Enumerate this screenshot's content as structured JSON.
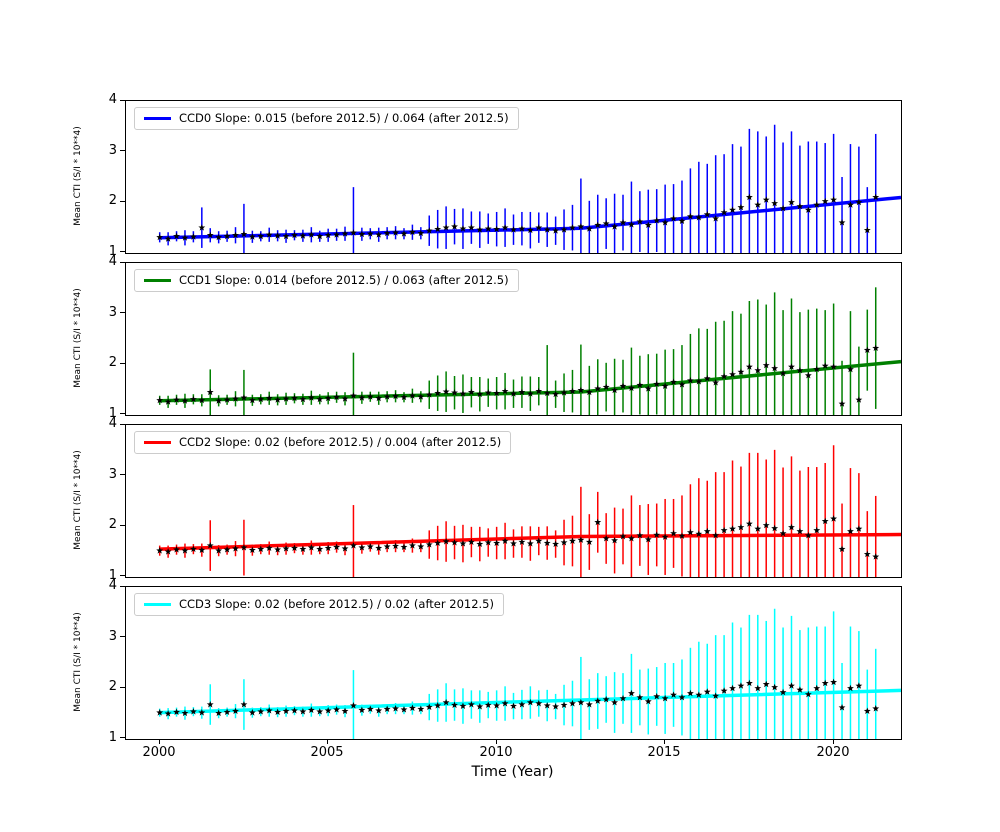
{
  "chart_data": {
    "type": "scatter",
    "title": "",
    "xlabel": "Time (Year)",
    "ylabel": "Mean CTI (S/I * 10**4)",
    "xlim": [
      1999,
      2022
    ],
    "ylim": [
      1,
      4
    ],
    "x_ticks": [
      2000,
      2005,
      2010,
      2015,
      2020
    ],
    "y_ticks": [
      4,
      3,
      2,
      1
    ],
    "break_x": 2012.5,
    "marker": {
      "shape": "star",
      "color": "#000000"
    },
    "x": [
      2000.0,
      2000.25,
      2000.5,
      2000.75,
      2001.0,
      2001.25,
      2001.5,
      2001.75,
      2002.0,
      2002.25,
      2002.5,
      2002.75,
      2003.0,
      2003.25,
      2003.5,
      2003.75,
      2004.0,
      2004.25,
      2004.5,
      2004.75,
      2005.0,
      2005.25,
      2005.5,
      2005.75,
      2006.0,
      2006.25,
      2006.5,
      2006.75,
      2007.0,
      2007.25,
      2007.5,
      2007.75,
      2008.0,
      2008.25,
      2008.5,
      2008.75,
      2009.0,
      2009.25,
      2009.5,
      2009.75,
      2010.0,
      2010.25,
      2010.5,
      2010.75,
      2011.0,
      2011.25,
      2011.5,
      2011.75,
      2012.0,
      2012.25,
      2012.5,
      2012.75,
      2013.0,
      2013.25,
      2013.5,
      2013.75,
      2014.0,
      2014.25,
      2014.5,
      2014.75,
      2015.0,
      2015.25,
      2015.5,
      2015.75,
      2016.0,
      2016.25,
      2016.5,
      2016.75,
      2017.0,
      2017.25,
      2017.5,
      2017.75,
      2018.0,
      2018.25,
      2018.5,
      2018.75,
      2019.0,
      2019.25,
      2019.5,
      2019.75,
      2020.0,
      2020.25,
      2020.5,
      2020.75,
      2021.0,
      2021.25
    ],
    "series": [
      {
        "name": "CCD0",
        "color": "#0000ff",
        "legend": "CCD0 Slope: 0.015 (before 2012.5) / 0.064 (after 2012.5)",
        "slope_before": 0.015,
        "slope_after": 0.064,
        "value_at_2000": 1.3,
        "y": [
          1.31,
          1.28,
          1.33,
          1.3,
          1.32,
          1.5,
          1.35,
          1.31,
          1.33,
          1.35,
          1.37,
          1.32,
          1.33,
          1.36,
          1.34,
          1.33,
          1.35,
          1.34,
          1.36,
          1.33,
          1.35,
          1.36,
          1.38,
          1.4,
          1.37,
          1.38,
          1.36,
          1.39,
          1.4,
          1.38,
          1.41,
          1.39,
          1.44,
          1.47,
          1.5,
          1.52,
          1.48,
          1.5,
          1.46,
          1.48,
          1.47,
          1.5,
          1.46,
          1.48,
          1.45,
          1.5,
          1.46,
          1.44,
          1.46,
          1.5,
          1.52,
          1.48,
          1.55,
          1.58,
          1.52,
          1.6,
          1.56,
          1.62,
          1.55,
          1.64,
          1.6,
          1.68,
          1.63,
          1.72,
          1.7,
          1.76,
          1.68,
          1.8,
          1.85,
          1.9,
          2.1,
          1.95,
          2.05,
          1.98,
          1.88,
          2.0,
          1.92,
          1.85,
          1.95,
          2.02,
          2.05,
          1.6,
          1.95,
          2.0,
          1.45,
          2.1
        ],
        "yerr": [
          0.1,
          0.13,
          0.1,
          0.15,
          0.11,
          0.4,
          0.14,
          0.12,
          0.11,
          0.16,
          0.6,
          0.12,
          0.1,
          0.14,
          0.11,
          0.13,
          0.1,
          0.12,
          0.15,
          0.11,
          0.13,
          0.12,
          0.14,
          0.9,
          0.13,
          0.11,
          0.14,
          0.12,
          0.13,
          0.11,
          0.15,
          0.12,
          0.3,
          0.38,
          0.42,
          0.35,
          0.4,
          0.32,
          0.36,
          0.3,
          0.34,
          0.38,
          0.3,
          0.33,
          0.36,
          0.3,
          0.34,
          0.28,
          0.4,
          0.45,
          0.95,
          0.55,
          0.6,
          0.5,
          0.65,
          0.55,
          0.85,
          0.6,
          0.7,
          0.62,
          0.75,
          0.68,
          0.8,
          0.95,
          1.1,
          1.0,
          1.25,
          1.15,
          1.3,
          1.2,
          1.35,
          1.45,
          1.25,
          1.55,
          1.3,
          1.4,
          1.2,
          1.35,
          1.25,
          1.15,
          1.3,
          0.9,
          1.2,
          1.1,
          0.85,
          1.25
        ]
      },
      {
        "name": "CCD1",
        "color": "#008000",
        "legend": "CCD1 Slope: 0.014 (before 2012.5) / 0.063 (after 2012.5)",
        "slope_before": 0.014,
        "slope_after": 0.063,
        "value_at_2000": 1.28,
        "y": [
          1.29,
          1.26,
          1.3,
          1.28,
          1.31,
          1.29,
          1.45,
          1.28,
          1.3,
          1.32,
          1.34,
          1.29,
          1.31,
          1.33,
          1.3,
          1.32,
          1.33,
          1.31,
          1.34,
          1.31,
          1.33,
          1.35,
          1.32,
          1.38,
          1.34,
          1.36,
          1.33,
          1.36,
          1.37,
          1.35,
          1.38,
          1.36,
          1.4,
          1.43,
          1.46,
          1.44,
          1.42,
          1.45,
          1.41,
          1.44,
          1.43,
          1.47,
          1.42,
          1.45,
          1.42,
          1.47,
          1.43,
          1.41,
          1.44,
          1.47,
          1.49,
          1.45,
          1.52,
          1.55,
          1.49,
          1.57,
          1.53,
          1.59,
          1.52,
          1.61,
          1.57,
          1.65,
          1.6,
          1.68,
          1.66,
          1.72,
          1.64,
          1.76,
          1.8,
          1.85,
          1.95,
          1.88,
          1.98,
          1.92,
          1.82,
          1.95,
          1.88,
          1.78,
          1.9,
          1.97,
          1.95,
          1.22,
          1.9,
          1.3,
          2.28,
          2.32
        ],
        "yerr": [
          0.09,
          0.12,
          0.1,
          0.14,
          0.1,
          0.12,
          0.45,
          0.11,
          0.1,
          0.15,
          0.55,
          0.11,
          0.1,
          0.13,
          0.11,
          0.12,
          0.1,
          0.11,
          0.14,
          0.1,
          0.12,
          0.11,
          0.13,
          0.85,
          0.12,
          0.1,
          0.13,
          0.11,
          0.12,
          0.1,
          0.14,
          0.11,
          0.28,
          0.35,
          0.4,
          0.33,
          0.38,
          0.3,
          0.34,
          0.28,
          0.32,
          0.36,
          0.28,
          0.31,
          0.34,
          0.28,
          0.95,
          0.27,
          0.38,
          0.42,
          0.9,
          0.52,
          0.58,
          0.48,
          0.62,
          0.52,
          0.8,
          0.58,
          0.68,
          0.6,
          0.72,
          0.65,
          0.78,
          0.92,
          1.05,
          0.98,
          1.2,
          1.1,
          1.25,
          1.15,
          1.3,
          1.4,
          1.2,
          1.5,
          1.25,
          1.35,
          1.15,
          1.3,
          1.2,
          1.1,
          1.25,
          0.85,
          1.15,
          1.05,
          0.8,
          1.2
        ]
      },
      {
        "name": "CCD2",
        "color": "#ff0000",
        "legend": "CCD2 Slope: 0.02 (before 2012.5) / 0.004 (after 2012.5)",
        "slope_before": 0.02,
        "slope_after": 0.004,
        "value_at_2000": 1.55,
        "y": [
          1.52,
          1.5,
          1.54,
          1.52,
          1.55,
          1.53,
          1.62,
          1.52,
          1.54,
          1.56,
          1.58,
          1.53,
          1.55,
          1.57,
          1.54,
          1.56,
          1.57,
          1.55,
          1.58,
          1.55,
          1.57,
          1.59,
          1.56,
          1.62,
          1.58,
          1.6,
          1.57,
          1.6,
          1.61,
          1.59,
          1.62,
          1.6,
          1.64,
          1.67,
          1.7,
          1.68,
          1.66,
          1.69,
          1.65,
          1.68,
          1.67,
          1.71,
          1.66,
          1.69,
          1.66,
          1.71,
          1.67,
          1.65,
          1.68,
          1.71,
          1.73,
          1.69,
          2.08,
          1.76,
          1.72,
          1.8,
          1.76,
          1.82,
          1.74,
          1.83,
          1.79,
          1.86,
          1.81,
          1.88,
          1.85,
          1.9,
          1.82,
          1.92,
          1.95,
          1.98,
          2.05,
          1.95,
          2.02,
          1.96,
          1.86,
          1.98,
          1.9,
          1.82,
          1.92,
          2.1,
          2.15,
          1.55,
          1.9,
          1.95,
          1.45,
          1.4
        ],
        "yerr": [
          0.1,
          0.12,
          0.1,
          0.14,
          0.1,
          0.13,
          0.5,
          0.11,
          0.1,
          0.15,
          0.55,
          0.11,
          0.1,
          0.13,
          0.11,
          0.12,
          0.1,
          0.11,
          0.14,
          0.1,
          0.12,
          0.11,
          0.13,
          0.8,
          0.12,
          0.1,
          0.13,
          0.11,
          0.12,
          0.1,
          0.14,
          0.11,
          0.28,
          0.34,
          0.4,
          0.33,
          0.37,
          0.3,
          0.34,
          0.28,
          0.32,
          0.36,
          0.28,
          0.31,
          0.34,
          0.28,
          0.33,
          0.27,
          0.45,
          0.5,
          1.05,
          0.55,
          0.6,
          0.5,
          0.65,
          0.55,
          0.85,
          0.6,
          0.7,
          0.62,
          0.75,
          0.68,
          0.8,
          0.95,
          1.1,
          1.0,
          1.25,
          1.15,
          1.35,
          1.2,
          1.4,
          1.5,
          1.3,
          1.55,
          1.3,
          1.4,
          1.2,
          1.35,
          1.25,
          1.15,
          1.45,
          0.9,
          1.25,
          1.1,
          0.85,
          1.2
        ]
      },
      {
        "name": "CCD3",
        "color": "#00ffff",
        "legend": "CCD3 Slope: 0.02 (before 2012.5) / 0.02 (after 2012.5)",
        "slope_before": 0.02,
        "slope_after": 0.02,
        "value_at_2000": 1.52,
        "y": [
          1.52,
          1.5,
          1.53,
          1.51,
          1.54,
          1.52,
          1.68,
          1.51,
          1.53,
          1.55,
          1.68,
          1.52,
          1.54,
          1.56,
          1.53,
          1.55,
          1.56,
          1.54,
          1.57,
          1.54,
          1.56,
          1.58,
          1.55,
          1.66,
          1.57,
          1.59,
          1.56,
          1.59,
          1.6,
          1.58,
          1.61,
          1.59,
          1.63,
          1.66,
          1.72,
          1.67,
          1.65,
          1.68,
          1.64,
          1.67,
          1.66,
          1.7,
          1.65,
          1.68,
          1.72,
          1.7,
          1.66,
          1.64,
          1.67,
          1.7,
          1.72,
          1.68,
          1.75,
          1.78,
          1.72,
          1.8,
          1.9,
          1.82,
          1.74,
          1.84,
          1.8,
          1.87,
          1.82,
          1.9,
          1.87,
          1.93,
          1.85,
          1.95,
          2.0,
          2.05,
          2.1,
          2.0,
          2.08,
          2.02,
          1.92,
          2.05,
          1.97,
          1.88,
          2.0,
          2.1,
          2.12,
          1.62,
          2.0,
          2.05,
          1.55,
          1.6
        ],
        "yerr": [
          0.08,
          0.11,
          0.09,
          0.13,
          0.09,
          0.12,
          0.4,
          0.1,
          0.09,
          0.14,
          0.5,
          0.1,
          0.09,
          0.12,
          0.1,
          0.11,
          0.09,
          0.1,
          0.13,
          0.09,
          0.11,
          0.1,
          0.12,
          0.7,
          0.11,
          0.09,
          0.12,
          0.1,
          0.11,
          0.09,
          0.13,
          0.1,
          0.26,
          0.32,
          0.38,
          0.31,
          0.35,
          0.28,
          0.32,
          0.26,
          0.3,
          0.34,
          0.26,
          0.29,
          0.32,
          0.26,
          0.31,
          0.25,
          0.4,
          0.45,
          0.9,
          0.5,
          0.55,
          0.46,
          0.6,
          0.5,
          0.78,
          0.55,
          0.65,
          0.58,
          0.7,
          0.63,
          0.75,
          0.9,
          1.05,
          0.95,
          1.2,
          1.1,
          1.3,
          1.15,
          1.35,
          1.45,
          1.25,
          1.55,
          1.28,
          1.38,
          1.18,
          1.32,
          1.22,
          1.12,
          1.4,
          0.88,
          1.22,
          1.08,
          0.82,
          1.18
        ]
      }
    ]
  }
}
